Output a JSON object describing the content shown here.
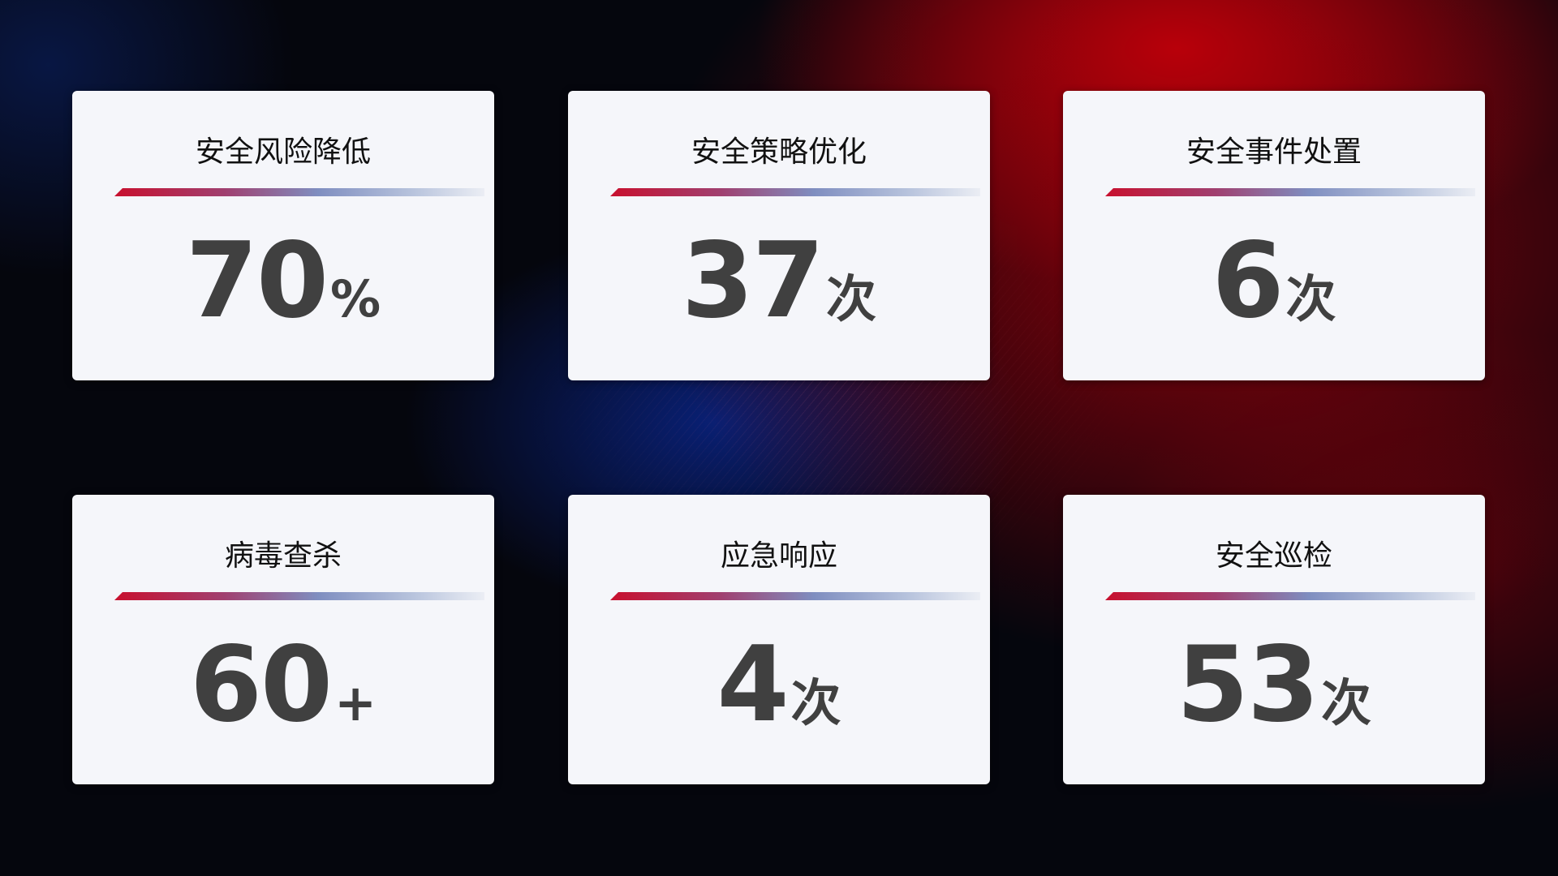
{
  "cards": [
    {
      "title": "安全风险降低",
      "value": "70",
      "unit": "%"
    },
    {
      "title": "安全策略优化",
      "value": "37",
      "unit": "次"
    },
    {
      "title": "安全事件处置",
      "value": "6",
      "unit": "次"
    },
    {
      "title": "病毒查杀",
      "value": "60",
      "unit": "+"
    },
    {
      "title": "应急响应",
      "value": "4",
      "unit": "次"
    },
    {
      "title": "安全巡检",
      "value": "53",
      "unit": "次"
    }
  ],
  "colors": {
    "accent_red": "#c8102e",
    "accent_blue": "#7f8ec0",
    "card_bg": "#f5f6fa",
    "value_text": "#404040"
  }
}
